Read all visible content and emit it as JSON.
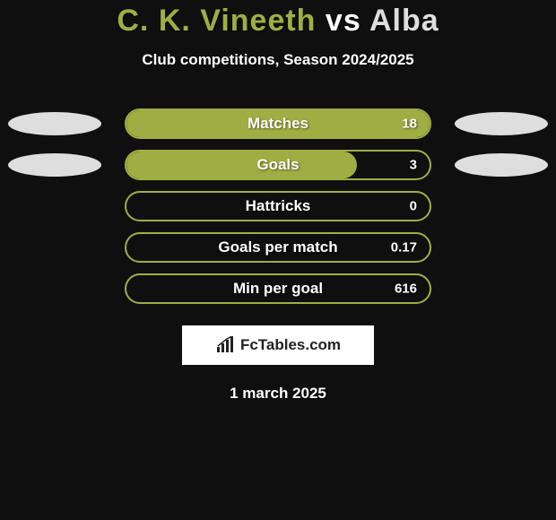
{
  "colors": {
    "bg": "#0f0f0f",
    "title_left": "#9fae43",
    "title_vs": "#ffffff",
    "title_right": "#dedede",
    "subtitle": "#ffffff",
    "bar_border": "#9fae43",
    "bar_fill": "#9fae43",
    "bar_label": "#ffffff",
    "bar_value": "#ffffff",
    "ellipse_left": "#dedede",
    "ellipse_right": "#dedede",
    "brand_bg": "#ffffff",
    "brand_text": "#222222",
    "date": "#ffffff"
  },
  "title": {
    "left": "C. K. Vineeth",
    "vs": "vs",
    "right": "Alba"
  },
  "subtitle": "Club competitions, Season 2024/2025",
  "rows": [
    {
      "label": "Matches",
      "value": "18",
      "fill_pct": 100,
      "ellipse_left": true,
      "ellipse_right": true
    },
    {
      "label": "Goals",
      "value": "3",
      "fill_pct": 76,
      "ellipse_left": true,
      "ellipse_right": true
    },
    {
      "label": "Hattricks",
      "value": "0",
      "fill_pct": 0,
      "ellipse_left": false,
      "ellipse_right": false
    },
    {
      "label": "Goals per match",
      "value": "0.17",
      "fill_pct": 0,
      "ellipse_left": false,
      "ellipse_right": false
    },
    {
      "label": "Min per goal",
      "value": "616",
      "fill_pct": 0,
      "ellipse_left": false,
      "ellipse_right": false
    }
  ],
  "brand": {
    "text": "FcTables.com"
  },
  "date": "1 march 2025"
}
